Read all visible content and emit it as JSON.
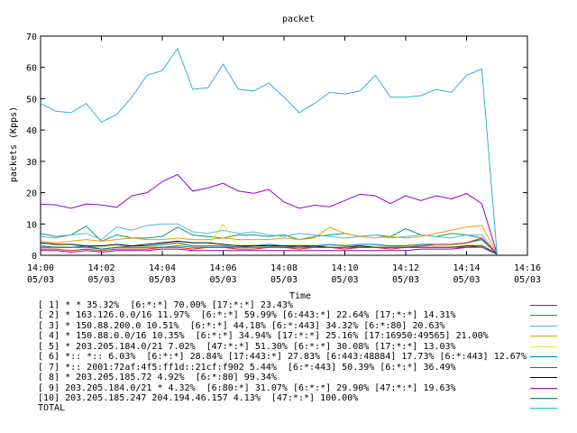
{
  "chart_data": {
    "type": "line",
    "title": "packet",
    "xlabel": "Time",
    "ylabel": "packets (Kpps)",
    "ylim": [
      0,
      70
    ],
    "yticks": [
      "0",
      "10",
      "20",
      "30",
      "40",
      "50",
      "60",
      "70"
    ],
    "xlim": [
      "14:00",
      "14:16"
    ],
    "xticks": [
      {
        "t": "14:00",
        "d": "05/03",
        "m": 0
      },
      {
        "t": "14:02",
        "d": "05/03",
        "m": 2
      },
      {
        "t": "14:04",
        "d": "05/03",
        "m": 4
      },
      {
        "t": "14:06",
        "d": "05/03",
        "m": 6
      },
      {
        "t": "14:08",
        "d": "05/03",
        "m": 8
      },
      {
        "t": "14:10",
        "d": "05/03",
        "m": 10
      },
      {
        "t": "14:12",
        "d": "05/03",
        "m": 12
      },
      {
        "t": "14:14",
        "d": "05/03",
        "m": 14
      },
      {
        "t": "14:16",
        "d": "05/03",
        "m": 16
      }
    ],
    "x": [
      0,
      0.5,
      1,
      1.5,
      2,
      2.5,
      3,
      3.5,
      4,
      4.5,
      5,
      5.5,
      6,
      6.5,
      7,
      7.5,
      8,
      8.5,
      9,
      9.5,
      10,
      10.5,
      11,
      11.5,
      12,
      12.5,
      13,
      13.5,
      14,
      14.5,
      15
    ],
    "grid": false,
    "legend_position": "below",
    "series": [
      {
        "name": "[ 1] * * 35.32%  [6:*:*] 70.00% [17:*:*] 23.43%",
        "color": "#9400d3",
        "values": [
          16.3,
          16.1,
          15.0,
          16.4,
          16.1,
          15.3,
          19.0,
          20.0,
          23.5,
          25.8,
          20.5,
          21.5,
          23.0,
          20.5,
          19.8,
          21.0,
          17.0,
          15.0,
          16.0,
          15.5,
          17.5,
          19.5,
          19.0,
          16.5,
          19.0,
          17.5,
          19.0,
          18.0,
          19.7,
          16.5,
          0.5
        ]
      },
      {
        "name": "[ 2] * 163.126.0.0/16 11.97%  [6:*:*] 59.99% [6:443:*] 22.64% [17:*:*] 14.31%",
        "color": "#009e73",
        "values": [
          7.0,
          6.0,
          6.5,
          9.3,
          4.5,
          6.5,
          5.5,
          5.5,
          6.0,
          9.0,
          6.5,
          6.0,
          5.5,
          6.5,
          6.5,
          6.0,
          6.5,
          5.0,
          6.0,
          6.5,
          7.0,
          6.0,
          6.5,
          6.0,
          8.5,
          6.5,
          6.0,
          7.0,
          6.5,
          5.5,
          0.5
        ]
      },
      {
        "name": "[ 3] * 150.88.200.0 10.51%  [6:*:*] 44.18% [6:*:443] 34.32% [6:*:80] 20.63%",
        "color": "#56b4e9",
        "values": [
          6.0,
          5.5,
          6.5,
          7.0,
          5.0,
          9.0,
          8.0,
          9.5,
          10.0,
          10.0,
          7.5,
          7.0,
          8.0,
          7.0,
          7.5,
          6.5,
          6.0,
          7.0,
          6.5,
          6.0,
          5.5,
          6.0,
          6.5,
          5.5,
          6.0,
          6.5,
          6.0,
          5.5,
          6.5,
          6.5,
          0.5
        ]
      },
      {
        "name": "[ 4] * 150.88.0.0/16 10.35%  [6:*:*] 34.94% [17:*:*] 25.16% [17:16950:49565] 21.00%",
        "color": "#e69f00",
        "values": [
          4.5,
          4.0,
          4.5,
          5.0,
          4.5,
          5.0,
          5.5,
          5.0,
          5.0,
          5.5,
          5.0,
          5.0,
          5.5,
          5.0,
          5.0,
          5.0,
          5.5,
          5.0,
          5.5,
          9.0,
          7.0,
          6.0,
          5.5,
          6.0,
          5.5,
          6.0,
          7.0,
          8.0,
          9.0,
          9.5,
          0.5
        ]
      },
      {
        "name": "[ 5] * 203.205.184.0/21 7.02%  [47:*:*] 51.30% [6:*:*] 30.08% [17:*:*] 13.03%",
        "color": "#f0e442",
        "values": [
          3.0,
          3.0,
          2.5,
          3.0,
          2.5,
          3.0,
          3.0,
          2.5,
          3.0,
          3.5,
          3.0,
          3.0,
          10.0,
          3.0,
          3.5,
          3.0,
          3.0,
          3.5,
          3.0,
          3.0,
          3.5,
          3.0,
          3.0,
          3.0,
          3.5,
          3.0,
          3.0,
          3.0,
          3.5,
          3.5,
          0.5
        ]
      },
      {
        "name": "[ 6] *:: *:: 6.03%  [6:*:*] 28.84% [17:443:*] 27.83% [6:443:48884] 17.73% [6:*:443] 12.67%",
        "color": "#0072b2",
        "values": [
          3.0,
          2.5,
          2.5,
          3.0,
          2.0,
          2.5,
          3.0,
          3.0,
          3.5,
          4.0,
          3.0,
          3.0,
          3.0,
          2.5,
          3.0,
          3.5,
          3.0,
          2.5,
          3.0,
          3.5,
          3.0,
          3.5,
          3.5,
          3.0,
          3.0,
          3.5,
          3.5,
          3.5,
          4.0,
          5.0,
          0.5
        ]
      },
      {
        "name": "[ 7] *:: 2001:72af:4f5:ff1d::21cf:f902 5.44%  [6:*:443] 50.39% [6:*:*] 36.49%",
        "color": "#e51e10",
        "values": [
          2.0,
          2.0,
          1.5,
          2.0,
          1.5,
          2.0,
          2.0,
          2.0,
          2.5,
          2.5,
          2.0,
          2.5,
          2.5,
          2.0,
          2.0,
          2.5,
          2.5,
          2.0,
          2.5,
          2.5,
          2.0,
          2.5,
          2.5,
          2.0,
          2.5,
          3.0,
          3.5,
          3.5,
          4.0,
          5.5,
          0.5
        ]
      },
      {
        "name": "[ 8] * 203.205.185.72 4.92%  [6:*:80] 99.34%",
        "color": "#000000",
        "values": [
          4.0,
          3.5,
          3.5,
          3.0,
          3.0,
          3.5,
          3.0,
          3.5,
          4.0,
          4.5,
          4.0,
          4.0,
          3.5,
          3.0,
          3.0,
          3.0,
          3.0,
          3.0,
          3.0,
          2.5,
          2.5,
          3.0,
          2.5,
          2.5,
          2.5,
          2.5,
          2.5,
          2.5,
          3.0,
          3.0,
          0.5
        ]
      },
      {
        "name": "[ 9] 203.205.184.0/21 * 4.32%  [6:80:*] 31.07% [6:*:*] 29.90% [47:*:*] 19.63%",
        "color": "#a000a0",
        "values": [
          1.5,
          1.5,
          1.0,
          1.5,
          1.0,
          1.5,
          1.5,
          1.5,
          2.0,
          2.0,
          1.5,
          1.5,
          1.5,
          1.5,
          1.5,
          1.5,
          1.5,
          1.5,
          1.5,
          1.5,
          1.5,
          1.5,
          1.5,
          1.5,
          1.5,
          2.0,
          2.0,
          2.0,
          2.5,
          3.0,
          0.5
        ]
      },
      {
        "name": "[10] 203.205.185.247 204.194.46.157 4.13%  [47:*:*] 100.00%",
        "color": "#008080",
        "values": [
          2.5,
          2.5,
          2.5,
          2.5,
          2.0,
          2.5,
          2.5,
          2.5,
          2.5,
          3.0,
          2.5,
          2.5,
          2.5,
          2.5,
          2.5,
          2.5,
          2.5,
          2.5,
          2.5,
          2.5,
          2.5,
          2.5,
          2.5,
          2.5,
          2.5,
          2.5,
          2.5,
          2.5,
          2.5,
          2.5,
          0.3
        ]
      },
      {
        "name": "TOTAL",
        "color": "#2cb4d0",
        "values": [
          48.5,
          46.0,
          45.5,
          48.5,
          42.5,
          45.0,
          50.5,
          57.5,
          59.0,
          66.0,
          53.0,
          53.5,
          61.0,
          53.0,
          52.5,
          55.0,
          50.5,
          45.5,
          48.5,
          52.0,
          51.5,
          52.5,
          57.5,
          50.5,
          50.5,
          51.0,
          53.0,
          52.0,
          57.5,
          59.5,
          0.5
        ]
      }
    ]
  }
}
